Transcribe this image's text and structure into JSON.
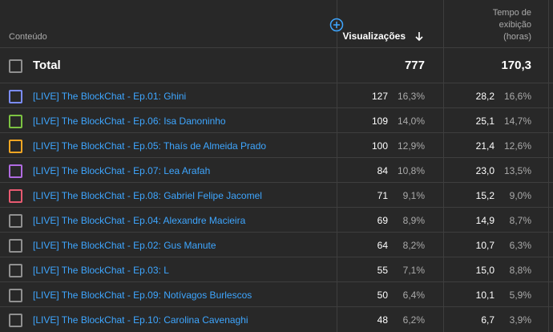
{
  "header": {
    "content_label": "Conteúdo",
    "views_label": "Visualizações",
    "watch_time_label_1": "Tempo de",
    "watch_time_label_2": "exibição",
    "watch_time_label_3": "(horas)",
    "sort_icon": "arrow-down-icon",
    "add_metric_icon": "plus-circle-icon"
  },
  "total": {
    "label": "Total",
    "views": "777",
    "watch_time": "170,3"
  },
  "rows": [
    {
      "title": "[LIVE] The BlockChat - Ep.01: Ghini",
      "views": "127",
      "views_pct": "16,3%",
      "watch": "28,2",
      "watch_pct": "16,6%",
      "color": "#7b8cff"
    },
    {
      "title": "[LIVE] The BlockChat - Ep.06: Isa Danoninho",
      "views": "109",
      "views_pct": "14,0%",
      "watch": "25,1",
      "watch_pct": "14,7%",
      "color": "#7cc242"
    },
    {
      "title": "[LIVE] The BlockChat - Ep.05: Thaís de Almeida Prado",
      "views": "100",
      "views_pct": "12,9%",
      "watch": "21,4",
      "watch_pct": "12,6%",
      "color": "#f5a623"
    },
    {
      "title": "[LIVE] The BlockChat - Ep.07: Lea Arafah",
      "views": "84",
      "views_pct": "10,8%",
      "watch": "23,0",
      "watch_pct": "13,5%",
      "color": "#b06be0"
    },
    {
      "title": "[LIVE] The BlockChat - Ep.08: Gabriel Felipe Jacomel",
      "views": "71",
      "views_pct": "9,1%",
      "watch": "15,2",
      "watch_pct": "9,0%",
      "color": "#e85a71"
    },
    {
      "title": "[LIVE] The BlockChat - Ep.04: Alexandre Macieira",
      "views": "69",
      "views_pct": "8,9%",
      "watch": "14,9",
      "watch_pct": "8,7%",
      "color": "#909090"
    },
    {
      "title": "[LIVE] The BlockChat - Ep.02: Gus Manute",
      "views": "64",
      "views_pct": "8,2%",
      "watch": "10,7",
      "watch_pct": "6,3%",
      "color": "#909090"
    },
    {
      "title": "[LIVE] The BlockChat - Ep.03: L",
      "views": "55",
      "views_pct": "7,1%",
      "watch": "15,0",
      "watch_pct": "8,8%",
      "color": "#909090"
    },
    {
      "title": "[LIVE] The BlockChat - Ep.09: Notívagos Burlescos",
      "views": "50",
      "views_pct": "6,4%",
      "watch": "10,1",
      "watch_pct": "5,9%",
      "color": "#909090"
    },
    {
      "title": "[LIVE] The BlockChat - Ep.10: Carolina Cavenaghi",
      "views": "48",
      "views_pct": "6,2%",
      "watch": "6,7",
      "watch_pct": "3,9%",
      "color": "#909090"
    }
  ]
}
